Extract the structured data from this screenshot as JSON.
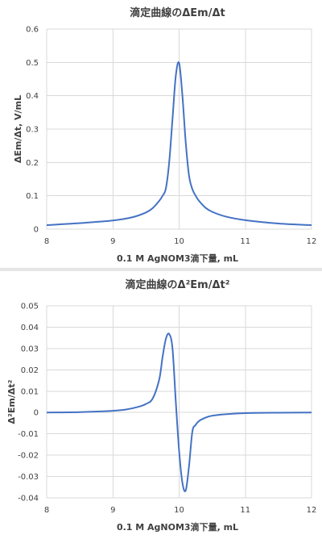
{
  "chart_data": [
    {
      "type": "line",
      "title": "滴定曲線のΔEm/Δt",
      "xlabel": "0.1 M AgNOM3滴下量, mL",
      "ylabel": "ΔEm/Δt, V/mL",
      "xlim": [
        8,
        12
      ],
      "ylim": [
        0,
        0.6
      ],
      "xticks": [
        "8",
        "9",
        "10",
        "11",
        "12"
      ],
      "yticks": [
        "0",
        "0.1",
        "0.2",
        "0.3",
        "0.4",
        "0.5",
        "0.6"
      ],
      "grid": "both",
      "legend": "none",
      "color": "#4472c4",
      "series": [
        {
          "x": [
            8.0,
            8.5,
            9.0,
            9.3,
            9.5,
            9.6,
            9.7,
            9.75,
            9.8,
            9.85,
            9.9,
            9.95,
            10.0,
            10.05,
            10.1,
            10.15,
            10.2,
            10.25,
            10.3,
            10.4,
            10.5,
            10.7,
            11.0,
            11.5,
            12.0
          ],
          "y": [
            0.012,
            0.018,
            0.026,
            0.036,
            0.05,
            0.063,
            0.085,
            0.1,
            0.122,
            0.2,
            0.33,
            0.46,
            0.498,
            0.4,
            0.26,
            0.16,
            0.12,
            0.1,
            0.085,
            0.064,
            0.052,
            0.038,
            0.027,
            0.017,
            0.012
          ]
        }
      ]
    },
    {
      "type": "line",
      "title": "滴定曲線のΔ²Em/Δt²",
      "xlabel": "0.1 M AgNOM3滴下量, mL",
      "ylabel": "Δ²Em/Δt²",
      "xlim": [
        8,
        12
      ],
      "ylim": [
        -0.04,
        0.05
      ],
      "xticks": [
        "8",
        "9",
        "10",
        "11",
        "12"
      ],
      "yticks": [
        "-0.04",
        "-0.03",
        "-0.02",
        "-0.01",
        "0",
        "0.01",
        "0.02",
        "0.03",
        "0.04",
        "0.05"
      ],
      "grid": "both",
      "legend": "none",
      "color": "#4472c4",
      "series": [
        {
          "x": [
            8.0,
            8.5,
            9.0,
            9.2,
            9.4,
            9.5,
            9.6,
            9.7,
            9.75,
            9.8,
            9.85,
            9.9,
            9.95,
            10.0,
            10.05,
            10.1,
            10.15,
            10.2,
            10.25,
            10.3,
            10.4,
            10.5,
            10.7,
            11.0,
            11.5,
            12.0
          ],
          "y": [
            0.0,
            0.0002,
            0.0008,
            0.0014,
            0.0028,
            0.004,
            0.0065,
            0.0155,
            0.026,
            0.0345,
            0.0368,
            0.03,
            0.005,
            -0.018,
            -0.033,
            -0.0365,
            -0.025,
            -0.009,
            -0.0058,
            -0.004,
            -0.0024,
            -0.0015,
            -0.0008,
            -0.0003,
            -0.0001,
            0.0
          ]
        }
      ]
    }
  ]
}
